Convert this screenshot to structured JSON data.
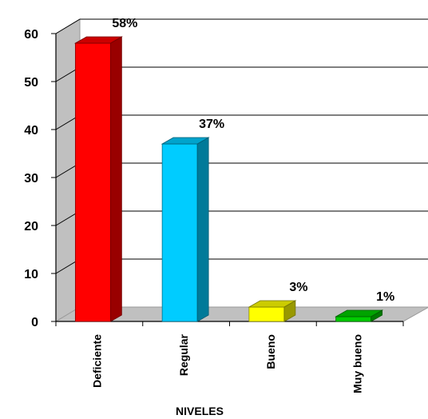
{
  "chart_data": {
    "type": "bar",
    "title": "",
    "xlabel": "NIVELES",
    "ylabel": "",
    "ylim": [
      0,
      60
    ],
    "yticks": [
      0,
      10,
      20,
      30,
      40,
      50,
      60
    ],
    "grid": true,
    "categories": [
      "Deficiente",
      "Regular",
      "Bueno",
      "Muy bueno"
    ],
    "values": [
      58,
      37,
      3,
      1
    ],
    "data_labels": [
      "58%",
      "37%",
      "3%",
      "1%"
    ],
    "colors": [
      "#ff0000",
      "#00ccff",
      "#ffff00",
      "#00cc00"
    ]
  }
}
